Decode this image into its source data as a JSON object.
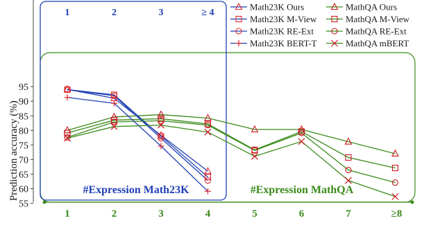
{
  "chart_data": {
    "type": "line",
    "ylabel": "Prediction accuracy (%)",
    "ylim": [
      54,
      99
    ],
    "yticks": [
      55,
      60,
      65,
      70,
      75,
      80,
      85,
      90,
      95
    ],
    "grid": false,
    "legend_position": "top-right",
    "colors": {
      "math23k": "#1f3fb4",
      "mathqa": "#3a8a1a",
      "math23k_marker": "#e0262b",
      "mathqa_marker": "#c8171d"
    },
    "math23k_categories": [
      "1",
      "2",
      "3",
      "≥ 4"
    ],
    "mathqa_categories": [
      "1",
      "2",
      "3",
      "4",
      "5",
      "6",
      "7",
      "≥8"
    ],
    "math23k_panel_title": "#Expression Math23K",
    "mathqa_panel_title": "#Expression MathQA",
    "series": [
      {
        "name": "Math23K Ours",
        "group": "math23k",
        "marker": "triangle",
        "values": [
          94.1,
          91.0,
          78.3,
          66.0
        ]
      },
      {
        "name": "MathQA Ours",
        "group": "mathqa",
        "marker": "triangle",
        "values": [
          80.0,
          84.6,
          85.4,
          84.2,
          80.3,
          80.3,
          76.1,
          72.0
        ]
      },
      {
        "name": "Math23K M-View",
        "group": "math23k",
        "marker": "square",
        "values": [
          94.0,
          92.2,
          78.0,
          64.0
        ]
      },
      {
        "name": "MathQA M-View",
        "group": "mathqa",
        "marker": "square",
        "values": [
          79.1,
          83.5,
          84.0,
          82.2,
          73.3,
          79.6,
          70.7,
          67.1
        ]
      },
      {
        "name": "Math23K RE-Ext",
        "group": "math23k",
        "marker": "circle",
        "values": [
          93.9,
          91.9,
          77.3,
          62.8
        ]
      },
      {
        "name": "MathQA RE-Ext",
        "group": "mathqa",
        "marker": "circle",
        "values": [
          77.6,
          82.9,
          83.3,
          81.8,
          73.1,
          79.1,
          66.4,
          62.1
        ]
      },
      {
        "name": "Math23K BERT-T",
        "group": "math23k",
        "marker": "plus",
        "values": [
          91.3,
          89.3,
          74.6,
          59.1
        ]
      },
      {
        "name": "MathQA mBERT",
        "group": "mathqa",
        "marker": "x",
        "values": [
          77.3,
          81.3,
          81.8,
          79.4,
          71.1,
          76.2,
          62.8,
          57.3
        ]
      }
    ]
  }
}
